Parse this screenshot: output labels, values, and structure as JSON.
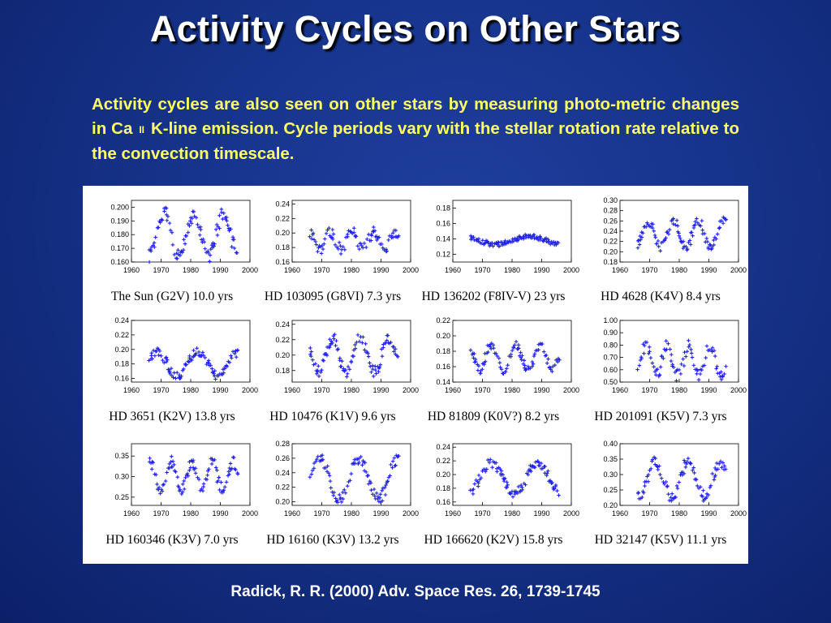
{
  "slide": {
    "title": "Activity Cycles on Other Stars",
    "intro_part1": "Activity cycles are also seen on other stars by measuring photo-metric changes in Ca",
    "intro_ion": "II",
    "intro_part2": "K-line emission. Cycle periods vary with the stellar rotation rate relative to the convection timescale.",
    "reference": "Radick, R. R. (2000) Adv. Space Res. 26, 1739-1745"
  },
  "chart_data": [
    {
      "type": "scatter",
      "caption": "The Sun (G2V) 10.0 yrs",
      "period_yrs": 10.0,
      "xlim": [
        1960,
        2000
      ],
      "x_ticks": [
        1960,
        1970,
        1980,
        1990,
        2000
      ],
      "ylim": [
        0.16,
        0.205
      ],
      "y_ticks": [
        "0.160",
        "0.170",
        "0.180",
        "0.190",
        "0.200"
      ],
      "start_year": 1966,
      "end_year": 1996,
      "mean": 0.18,
      "amplitude": 0.016,
      "phase": 1968.5,
      "noise": 0.005
    },
    {
      "type": "scatter",
      "caption": "HD 103095 (G8VI) 7.3 yrs",
      "period_yrs": 7.3,
      "xlim": [
        1960,
        2000
      ],
      "x_ticks": [
        1960,
        1970,
        1980,
        1990,
        2000
      ],
      "ylim": [
        0.16,
        0.245
      ],
      "y_ticks": [
        "0.16",
        "0.18",
        "0.20",
        "0.22",
        "0.24"
      ],
      "start_year": 1966,
      "end_year": 1996,
      "mean": 0.19,
      "amplitude": 0.012,
      "phase": 1971,
      "noise": 0.008
    },
    {
      "type": "scatter",
      "caption": "HD 136202 (F8IV-V) 23 yrs",
      "period_yrs": 23,
      "xlim": [
        1960,
        2000
      ],
      "x_ticks": [
        1960,
        1970,
        1980,
        1990,
        2000
      ],
      "ylim": [
        0.11,
        0.19
      ],
      "y_ticks": [
        "0.12",
        "0.14",
        "0.16",
        "0.18"
      ],
      "start_year": 1966,
      "end_year": 1996,
      "mean": 0.138,
      "amplitude": 0.005,
      "phase": 1980,
      "noise": 0.003
    },
    {
      "type": "scatter",
      "caption": "HD 4628 (K4V) 8.4 yrs",
      "period_yrs": 8.4,
      "xlim": [
        1960,
        2000
      ],
      "x_ticks": [
        1960,
        1970,
        1980,
        1990,
        2000
      ],
      "ylim": [
        0.18,
        0.3
      ],
      "y_ticks": [
        "0.18",
        "0.20",
        "0.22",
        "0.24",
        "0.26",
        "0.28",
        "0.30"
      ],
      "start_year": 1966,
      "end_year": 1996,
      "mean": 0.235,
      "amplitude": 0.025,
      "phase": 1967.5,
      "noise": 0.01
    },
    {
      "type": "scatter",
      "caption": "HD 3651 (K2V) 13.8 yrs",
      "period_yrs": 13.8,
      "xlim": [
        1960,
        2000
      ],
      "x_ticks": [
        1960,
        1970,
        1980,
        1990,
        2000
      ],
      "ylim": [
        0.155,
        0.24
      ],
      "y_ticks": [
        "0.16",
        "0.18",
        "0.20",
        "0.22",
        "0.24"
      ],
      "start_year": 1966,
      "end_year": 1996,
      "mean": 0.18,
      "amplitude": 0.016,
      "phase": 1965,
      "noise": 0.006
    },
    {
      "type": "scatter",
      "caption": "HD 10476 (K1V) 9.6 yrs",
      "period_yrs": 9.6,
      "xlim": [
        1960,
        2000
      ],
      "x_ticks": [
        1960,
        1970,
        1980,
        1990,
        2000
      ],
      "ylim": [
        0.165,
        0.245
      ],
      "y_ticks": [
        "0.18",
        "0.20",
        "0.22",
        "0.24"
      ],
      "start_year": 1966,
      "end_year": 1996,
      "mean": 0.2,
      "amplitude": 0.022,
      "phase": 1971,
      "noise": 0.008
    },
    {
      "type": "scatter",
      "caption": "HD 81809 (K0V?) 8.2 yrs",
      "period_yrs": 8.2,
      "xlim": [
        1960,
        2000
      ],
      "x_ticks": [
        1960,
        1970,
        1980,
        1990,
        2000
      ],
      "ylim": [
        0.14,
        0.22
      ],
      "y_ticks": [
        "0.14",
        "0.16",
        "0.18",
        "0.20",
        "0.22"
      ],
      "start_year": 1966,
      "end_year": 1996,
      "mean": 0.172,
      "amplitude": 0.016,
      "phase": 1971,
      "noise": 0.006
    },
    {
      "type": "scatter",
      "caption": "HD 201091 (K5V) 7.3 yrs",
      "period_yrs": 7.3,
      "xlim": [
        1960,
        2000
      ],
      "x_ticks": [
        1960,
        1970,
        1980,
        1990,
        2000
      ],
      "ylim": [
        0.5,
        1.0
      ],
      "y_ticks": [
        "0.50",
        "0.60",
        "0.70",
        "0.80",
        "0.90",
        "1.00"
      ],
      "start_year": 1966,
      "end_year": 1996,
      "mean": 0.67,
      "amplitude": 0.12,
      "phase": 1974,
      "noise": 0.05
    },
    {
      "type": "scatter",
      "caption": "HD 160346 (K3V) 7.0 yrs",
      "period_yrs": 7.0,
      "xlim": [
        1960,
        2000
      ],
      "x_ticks": [
        1960,
        1970,
        1980,
        1990,
        2000
      ],
      "ylim": [
        0.23,
        0.38
      ],
      "y_ticks": [
        "0.25",
        "0.30",
        "0.35"
      ],
      "start_year": 1966,
      "end_year": 1996,
      "mean": 0.3,
      "amplitude": 0.035,
      "phase": 1971.5,
      "noise": 0.015
    },
    {
      "type": "scatter",
      "caption": "HD 16160 (K3V) 13.2 yrs",
      "period_yrs": 13.2,
      "xlim": [
        1960,
        2000
      ],
      "x_ticks": [
        1960,
        1970,
        1980,
        1990,
        2000
      ],
      "ylim": [
        0.195,
        0.28
      ],
      "y_ticks": [
        "0.20",
        "0.22",
        "0.24",
        "0.26",
        "0.28"
      ],
      "start_year": 1966,
      "end_year": 1996,
      "mean": 0.232,
      "amplitude": 0.028,
      "phase": 1966,
      "noise": 0.008
    },
    {
      "type": "scatter",
      "caption": "HD 166620 (K2V) 15.8 yrs",
      "period_yrs": 15.8,
      "xlim": [
        1960,
        2000
      ],
      "x_ticks": [
        1960,
        1970,
        1980,
        1990,
        2000
      ],
      "ylim": [
        0.155,
        0.245
      ],
      "y_ticks": [
        "0.16",
        "0.18",
        "0.20",
        "0.22",
        "0.24"
      ],
      "start_year": 1966,
      "end_year": 1996,
      "mean": 0.195,
      "amplitude": 0.022,
      "phase": 1969,
      "noise": 0.007
    },
    {
      "type": "scatter",
      "caption": "HD 32147 (K5V) 11.1 yrs",
      "period_yrs": 11.1,
      "xlim": [
        1960,
        2000
      ],
      "x_ticks": [
        1960,
        1970,
        1980,
        1990,
        2000
      ],
      "ylim": [
        0.2,
        0.4
      ],
      "y_ticks": [
        "0.20",
        "0.25",
        "0.30",
        "0.35",
        "0.40"
      ],
      "start_year": 1966,
      "end_year": 1996,
      "mean": 0.285,
      "amplitude": 0.055,
      "phase": 1969,
      "noise": 0.018
    }
  ]
}
